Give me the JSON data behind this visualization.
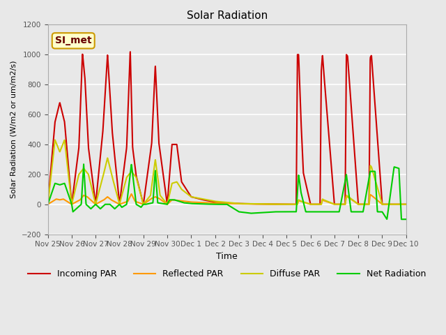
{
  "title": "Solar Radiation",
  "ylabel": "Solar Radiation (W/m2 or um/m2/s)",
  "xlabel": "Time",
  "ylim": [
    -200,
    1200
  ],
  "bg_color": "#e8e8e8",
  "annotation_text": "SI_met",
  "annotation_bg": "#ffffcc",
  "annotation_border": "#cc9900",
  "x_tick_labels": [
    "Nov 25",
    "Nov 26",
    "Nov 27",
    "Nov 28",
    "Nov 29",
    "Nov 30",
    "Dec 1",
    "Dec 2",
    "Dec 3",
    "Dec 4",
    "Dec 5",
    "Dec 6",
    "Dec 7",
    "Dec 8",
    "Dec 9",
    "Dec 10"
  ],
  "colors": {
    "incoming": "#cc0000",
    "reflected": "#ff9900",
    "diffuse": "#cccc00",
    "net": "#00cc00"
  },
  "legend_labels": [
    "Incoming PAR",
    "Reflected PAR",
    "Diffuse PAR",
    "Net Radiation"
  ]
}
